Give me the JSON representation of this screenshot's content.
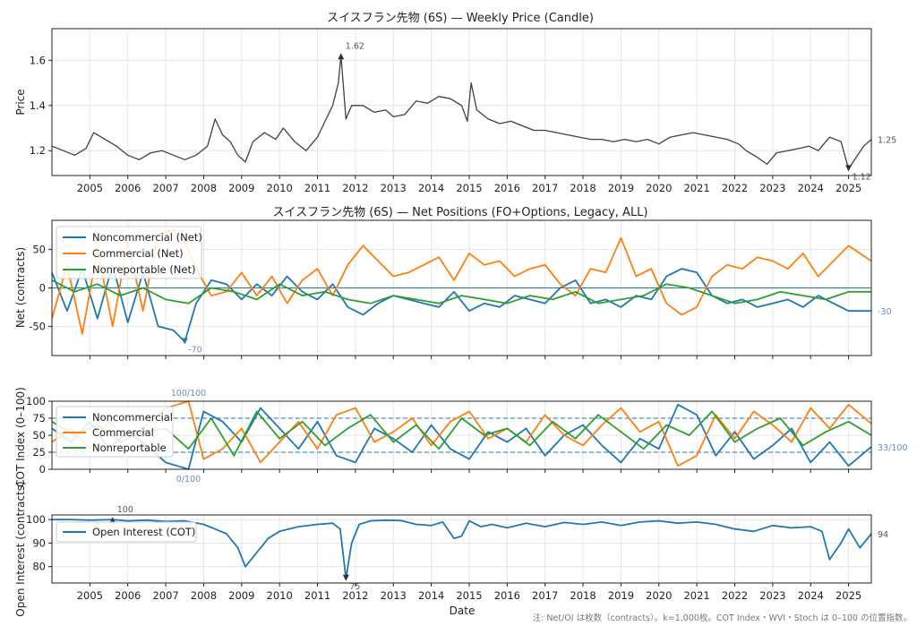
{
  "footnote": "注: Net/OI は枚数（contracts）。k=1,000枚。COT Index・WVI・Stoch は 0–100 の位置指数。",
  "x_axis": {
    "label": "Date",
    "ticks": [
      "2005",
      "2006",
      "2007",
      "2008",
      "2009",
      "2010",
      "2011",
      "2012",
      "2013",
      "2014",
      "2015",
      "2016",
      "2017",
      "2018",
      "2019",
      "2020",
      "2021",
      "2022",
      "2023",
      "2024",
      "2025"
    ],
    "range": [
      2004.0,
      2025.6
    ]
  },
  "colors": {
    "price": "#404040",
    "noncommercial": "#1f77b4",
    "commercial": "#ff7f0e",
    "nonreportable": "#2ca02c",
    "oi": "#1f77b4",
    "grid": "#e6e6e6",
    "annotation": "#6a8fb8"
  },
  "chart_data": [
    {
      "type": "line",
      "title": "スイスフラン先物 (6S) — Weekly Price (Candle)",
      "ylabel": "Price",
      "ylim": [
        1.09,
        1.74
      ],
      "yticks": [
        "1.2",
        "1.4",
        "1.6"
      ],
      "series": [
        {
          "x": [
            2004.0,
            2004.3,
            2004.6,
            2004.9,
            2005.1,
            2005.4,
            2005.7,
            2006.0,
            2006.3,
            2006.6,
            2006.9,
            2007.2,
            2007.5,
            2007.8,
            2008.1,
            2008.3,
            2008.5,
            2008.7,
            2008.9,
            2009.1,
            2009.3,
            2009.6,
            2009.9,
            2010.1,
            2010.4,
            2010.7,
            2011.0,
            2011.2,
            2011.4,
            2011.55,
            2011.62,
            2011.75,
            2011.9,
            2012.2,
            2012.5,
            2012.8,
            2013.0,
            2013.3,
            2013.6,
            2013.9,
            2014.2,
            2014.5,
            2014.8,
            2014.95,
            2015.05,
            2015.2,
            2015.5,
            2015.8,
            2016.1,
            2016.4,
            2016.7,
            2017.0,
            2017.3,
            2017.6,
            2017.9,
            2018.2,
            2018.5,
            2018.8,
            2019.1,
            2019.4,
            2019.7,
            2020.0,
            2020.3,
            2020.6,
            2020.9,
            2021.2,
            2021.5,
            2021.8,
            2022.1,
            2022.3,
            2022.6,
            2022.85,
            2023.1,
            2023.4,
            2023.7,
            2023.95,
            2024.2,
            2024.5,
            2024.8,
            2025.0,
            2025.2,
            2025.4,
            2025.6
          ],
          "y": [
            1.22,
            1.2,
            1.18,
            1.21,
            1.28,
            1.25,
            1.22,
            1.18,
            1.16,
            1.19,
            1.2,
            1.18,
            1.16,
            1.18,
            1.22,
            1.34,
            1.27,
            1.24,
            1.18,
            1.15,
            1.24,
            1.28,
            1.25,
            1.3,
            1.24,
            1.2,
            1.26,
            1.33,
            1.4,
            1.5,
            1.62,
            1.34,
            1.4,
            1.4,
            1.37,
            1.38,
            1.35,
            1.36,
            1.42,
            1.41,
            1.44,
            1.43,
            1.4,
            1.33,
            1.5,
            1.38,
            1.34,
            1.32,
            1.33,
            1.31,
            1.29,
            1.29,
            1.28,
            1.27,
            1.26,
            1.25,
            1.25,
            1.24,
            1.25,
            1.24,
            1.25,
            1.23,
            1.26,
            1.27,
            1.28,
            1.27,
            1.26,
            1.25,
            1.23,
            1.2,
            1.17,
            1.14,
            1.19,
            1.2,
            1.21,
            1.22,
            1.2,
            1.26,
            1.24,
            1.12,
            1.17,
            1.22,
            1.25
          ]
        }
      ],
      "annotations": [
        {
          "text": "1.62",
          "x": 2011.62,
          "y": 1.62,
          "marker": "up"
        },
        {
          "text": "1.12",
          "x": 2025.0,
          "y": 1.12,
          "marker": "down"
        },
        {
          "text": "1.25",
          "x": 2025.6,
          "y": 1.25,
          "marker": "none"
        }
      ]
    },
    {
      "type": "line",
      "title": "スイスフラン先物 (6S) — Net Positions (FO+Options, Legacy, ALL)",
      "ylabel": "Net (contracts)",
      "ylim": [
        -88,
        88
      ],
      "yticks": [
        "-50",
        "0",
        "50"
      ],
      "legend": "top-left",
      "series": [
        {
          "name": "Noncommercial (Net)",
          "x": [
            2004.0,
            2004.4,
            2004.8,
            2005.2,
            2005.6,
            2006.0,
            2006.4,
            2006.8,
            2007.2,
            2007.5,
            2007.8,
            2008.2,
            2008.6,
            2009.0,
            2009.4,
            2009.8,
            2010.2,
            2010.6,
            2011.0,
            2011.4,
            2011.8,
            2012.2,
            2012.6,
            2013.0,
            2013.4,
            2013.8,
            2014.2,
            2014.6,
            2015.0,
            2015.4,
            2015.8,
            2016.2,
            2016.6,
            2017.0,
            2017.4,
            2017.8,
            2018.2,
            2018.6,
            2019.0,
            2019.4,
            2019.8,
            2020.2,
            2020.6,
            2021.0,
            2021.4,
            2021.8,
            2022.2,
            2022.6,
            2023.0,
            2023.4,
            2023.8,
            2024.2,
            2024.6,
            2025.0,
            2025.6
          ],
          "values": [
            20,
            -30,
            25,
            -40,
            30,
            -45,
            20,
            -50,
            -55,
            -70,
            -20,
            10,
            5,
            -15,
            5,
            -10,
            15,
            -5,
            -15,
            5,
            -25,
            -35,
            -20,
            -10,
            -15,
            -20,
            -25,
            -5,
            -30,
            -20,
            -25,
            -10,
            -15,
            -20,
            0,
            10,
            -20,
            -15,
            -25,
            -10,
            -15,
            15,
            25,
            20,
            -10,
            -20,
            -15,
            -25,
            -20,
            -15,
            -25,
            -10,
            -20,
            -30,
            -30
          ]
        },
        {
          "name": "Commercial (Net)",
          "x": [
            2004.0,
            2004.4,
            2004.8,
            2005.2,
            2005.6,
            2006.0,
            2006.4,
            2006.8,
            2007.2,
            2007.5,
            2007.8,
            2008.2,
            2008.6,
            2009.0,
            2009.4,
            2009.8,
            2010.2,
            2010.6,
            2011.0,
            2011.4,
            2011.8,
            2012.2,
            2012.6,
            2013.0,
            2013.4,
            2013.8,
            2014.2,
            2014.6,
            2015.0,
            2015.4,
            2015.8,
            2016.2,
            2016.6,
            2017.0,
            2017.4,
            2017.8,
            2018.2,
            2018.6,
            2019.0,
            2019.4,
            2019.8,
            2020.2,
            2020.6,
            2021.0,
            2021.4,
            2021.8,
            2022.2,
            2022.6,
            2023.0,
            2023.4,
            2023.8,
            2024.2,
            2024.6,
            2025.0,
            2025.6
          ],
          "values": [
            -40,
            30,
            -60,
            50,
            -50,
            60,
            -30,
            70,
            75,
            60,
            25,
            -10,
            -5,
            20,
            -10,
            15,
            -20,
            10,
            25,
            -10,
            30,
            55,
            35,
            15,
            20,
            30,
            40,
            10,
            45,
            30,
            35,
            15,
            25,
            30,
            5,
            -10,
            25,
            20,
            65,
            15,
            25,
            -20,
            -35,
            -25,
            15,
            30,
            25,
            40,
            35,
            25,
            45,
            15,
            35,
            55,
            35
          ]
        },
        {
          "name": "Nonreportable (Net)",
          "x": [
            2004.0,
            2004.6,
            2005.2,
            2005.8,
            2006.4,
            2007.0,
            2007.6,
            2008.2,
            2008.8,
            2009.4,
            2010.0,
            2010.6,
            2011.2,
            2011.8,
            2012.4,
            2013.0,
            2013.6,
            2014.2,
            2014.8,
            2015.4,
            2016.0,
            2016.6,
            2017.2,
            2017.8,
            2018.4,
            2019.0,
            2019.6,
            2020.2,
            2020.8,
            2021.4,
            2022.0,
            2022.6,
            2023.2,
            2023.8,
            2024.4,
            2025.0,
            2025.6
          ],
          "values": [
            10,
            -5,
            5,
            -10,
            0,
            -15,
            -20,
            0,
            -5,
            -15,
            5,
            -10,
            -5,
            -15,
            -20,
            -10,
            -15,
            -20,
            -10,
            -15,
            -20,
            -10,
            -15,
            -5,
            -20,
            -15,
            -10,
            5,
            0,
            -10,
            -20,
            -15,
            -5,
            -10,
            -15,
            -5,
            -5
          ]
        }
      ],
      "annotations": [
        {
          "text": "-70",
          "x": 2007.5,
          "y": -70,
          "marker": "down"
        },
        {
          "text": "-30",
          "x": 2025.6,
          "y": -30,
          "marker": "none"
        }
      ]
    },
    {
      "type": "line",
      "ylabel": "COT Index (0–100)",
      "ylim": [
        0,
        100
      ],
      "yticks": [
        "0",
        "25",
        "50",
        "75",
        "100"
      ],
      "ref_lines": [
        75,
        25
      ],
      "legend": "top-left",
      "series": [
        {
          "name": "Noncommercial",
          "x": [
            2004.0,
            2004.5,
            2005.0,
            2005.5,
            2006.0,
            2006.5,
            2007.0,
            2007.3,
            2007.6,
            2008.0,
            2008.5,
            2009.0,
            2009.5,
            2010.0,
            2010.5,
            2011.0,
            2011.5,
            2012.0,
            2012.5,
            2013.0,
            2013.5,
            2014.0,
            2014.5,
            2015.0,
            2015.5,
            2016.0,
            2016.5,
            2017.0,
            2017.5,
            2018.0,
            2018.5,
            2019.0,
            2019.5,
            2020.0,
            2020.5,
            2021.0,
            2021.5,
            2022.0,
            2022.5,
            2023.0,
            2023.5,
            2024.0,
            2024.5,
            2025.0,
            2025.6
          ],
          "values": [
            60,
            40,
            70,
            30,
            55,
            35,
            10,
            5,
            0,
            85,
            70,
            40,
            90,
            60,
            30,
            70,
            20,
            10,
            60,
            45,
            25,
            65,
            30,
            15,
            55,
            40,
            60,
            20,
            50,
            65,
            35,
            10,
            45,
            30,
            95,
            80,
            20,
            55,
            15,
            35,
            60,
            10,
            40,
            5,
            33
          ]
        },
        {
          "name": "Commercial",
          "x": [
            2004.0,
            2004.5,
            2005.0,
            2005.5,
            2006.0,
            2006.5,
            2007.0,
            2007.3,
            2007.6,
            2008.0,
            2008.5,
            2009.0,
            2009.5,
            2010.0,
            2010.5,
            2011.0,
            2011.5,
            2012.0,
            2012.5,
            2013.0,
            2013.5,
            2014.0,
            2014.5,
            2015.0,
            2015.5,
            2016.0,
            2016.5,
            2017.0,
            2017.5,
            2018.0,
            2018.5,
            2019.0,
            2019.5,
            2020.0,
            2020.5,
            2021.0,
            2021.5,
            2022.0,
            2022.5,
            2023.0,
            2023.5,
            2024.0,
            2024.5,
            2025.0,
            2025.6
          ],
          "values": [
            40,
            60,
            30,
            70,
            45,
            65,
            90,
            95,
            100,
            15,
            30,
            60,
            10,
            40,
            70,
            30,
            80,
            90,
            40,
            55,
            75,
            35,
            70,
            85,
            45,
            60,
            40,
            80,
            50,
            35,
            65,
            90,
            55,
            70,
            5,
            20,
            80,
            45,
            85,
            65,
            40,
            90,
            60,
            95,
            67
          ]
        },
        {
          "name": "Nonreportable",
          "x": [
            2004.0,
            2004.6,
            2005.2,
            2005.8,
            2006.4,
            2007.0,
            2007.6,
            2008.2,
            2008.8,
            2009.4,
            2010.0,
            2010.6,
            2011.2,
            2011.8,
            2012.4,
            2013.0,
            2013.6,
            2014.2,
            2014.8,
            2015.4,
            2016.0,
            2016.6,
            2017.2,
            2017.8,
            2018.4,
            2019.0,
            2019.6,
            2020.2,
            2020.8,
            2021.4,
            2022.0,
            2022.6,
            2023.2,
            2023.8,
            2024.4,
            2025.0,
            2025.6
          ],
          "values": [
            70,
            50,
            65,
            40,
            55,
            60,
            30,
            75,
            20,
            85,
            45,
            70,
            35,
            60,
            80,
            40,
            65,
            30,
            75,
            50,
            60,
            35,
            70,
            45,
            80,
            55,
            30,
            65,
            50,
            85,
            40,
            60,
            75,
            35,
            55,
            70,
            50
          ]
        }
      ],
      "annotations": [
        {
          "text": "100/100",
          "x": 2007.6,
          "y": 100,
          "marker": "none"
        },
        {
          "text": "0/100",
          "x": 2007.6,
          "y": 0,
          "marker": "none"
        },
        {
          "text": "33/100",
          "x": 2025.6,
          "y": 33,
          "marker": "none"
        }
      ]
    },
    {
      "type": "line",
      "ylabel": "Open Interest (contracts)",
      "ylim": [
        73,
        102
      ],
      "yticks": [
        "80",
        "90",
        "100"
      ],
      "legend": "top-left",
      "series": [
        {
          "name": "Open Interest (COT)",
          "x": [
            2004.0,
            2004.5,
            2005.0,
            2005.6,
            2006.0,
            2006.5,
            2007.0,
            2007.5,
            2008.0,
            2008.3,
            2008.6,
            2008.9,
            2009.1,
            2009.4,
            2009.7,
            2010.0,
            2010.5,
            2011.0,
            2011.4,
            2011.6,
            2011.75,
            2011.9,
            2012.1,
            2012.4,
            2012.8,
            2013.2,
            2013.6,
            2014.0,
            2014.3,
            2014.6,
            2014.8,
            2015.0,
            2015.3,
            2015.6,
            2016.0,
            2016.5,
            2017.0,
            2017.5,
            2018.0,
            2018.5,
            2019.0,
            2019.5,
            2020.0,
            2020.5,
            2021.0,
            2021.5,
            2022.0,
            2022.5,
            2023.0,
            2023.5,
            2024.0,
            2024.3,
            2024.5,
            2024.8,
            2025.0,
            2025.3,
            2025.6
          ],
          "values": [
            100,
            100,
            99.8,
            100,
            99.5,
            99.8,
            99.2,
            99.5,
            98,
            96,
            94,
            88,
            80,
            86,
            92,
            95,
            97,
            98,
            98.5,
            96,
            75,
            90,
            98,
            99.5,
            99.8,
            99.6,
            98,
            97.5,
            99,
            92,
            93,
            99.5,
            97,
            98,
            96.5,
            98.5,
            97,
            98.8,
            98,
            99,
            97.5,
            99,
            99.5,
            98.5,
            99,
            98,
            96,
            95,
            97.5,
            96.5,
            97,
            95,
            83,
            90,
            96,
            88,
            94
          ]
        }
      ],
      "annotations": [
        {
          "text": "100",
          "x": 2005.6,
          "y": 100,
          "marker": "up"
        },
        {
          "text": "75",
          "x": 2011.75,
          "y": 75,
          "marker": "down"
        },
        {
          "text": "94",
          "x": 2025.6,
          "y": 94,
          "marker": "none"
        }
      ]
    }
  ]
}
